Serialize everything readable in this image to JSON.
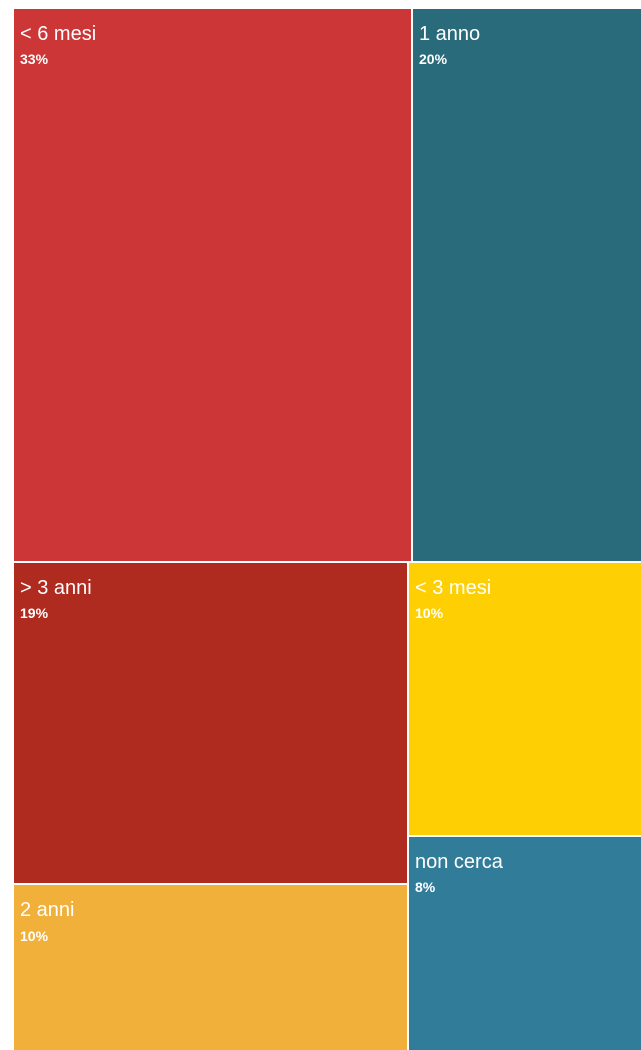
{
  "chart_data": {
    "type": "treemap",
    "title": "",
    "items": [
      {
        "label": "< 6 mesi",
        "value_label": "33%",
        "value": 33,
        "color": "#cc3636"
      },
      {
        "label": "1 anno",
        "value_label": "20%",
        "value": 20,
        "color": "#2a6b7b"
      },
      {
        "label": "> 3 anni",
        "value_label": "19%",
        "value": 19,
        "color": "#af2a1f"
      },
      {
        "label": "< 3 mesi",
        "value_label": "10%",
        "value": 10,
        "color": "#fed003"
      },
      {
        "label": "2 anni",
        "value_label": "10%",
        "value": 10,
        "color": "#f1b03a"
      },
      {
        "label": "non cerca",
        "value_label": "8%",
        "value": 8,
        "color": "#317c99"
      }
    ],
    "label_color": "#ffffff",
    "border_color": "#ffffff"
  }
}
